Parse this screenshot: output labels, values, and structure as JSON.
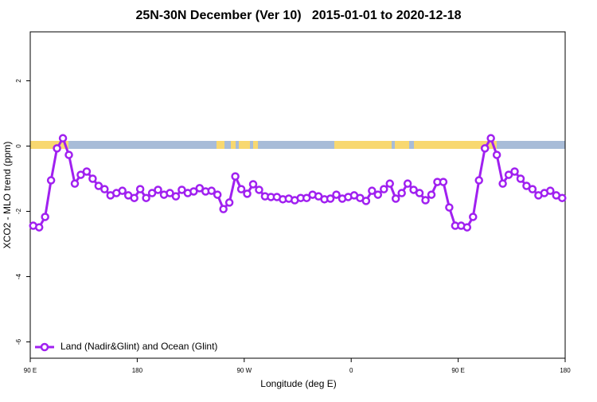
{
  "chart_data": {
    "type": "line",
    "title": "25N-30N December (Ver 10)   2015-01-01 to 2020-12-18",
    "xlabel": "Longitude (deg E)",
    "ylabel": "XCO2 - MLO trend (ppm)",
    "x": [
      92.5,
      97.5,
      102.5,
      107.5,
      112.5,
      117.5,
      122.5,
      127.5,
      132.5,
      137.5,
      142.5,
      147.5,
      152.5,
      157.5,
      162.5,
      167.5,
      172.5,
      177.5,
      182.5,
      187.5,
      192.5,
      197.5,
      202.5,
      207.5,
      212.5,
      217.5,
      222.5,
      227.5,
      232.5,
      237.5,
      242.5,
      247.5,
      252.5,
      257.5,
      262.5,
      267.5,
      272.5,
      277.5,
      282.5,
      287.5,
      292.5,
      297.5,
      302.5,
      307.5,
      312.5,
      317.5,
      322.5,
      327.5,
      332.5,
      337.5,
      342.5,
      347.5,
      352.5,
      357.5,
      362.5,
      367.5,
      372.5,
      377.5,
      382.5,
      387.5,
      392.5,
      397.5,
      402.5,
      407.5,
      412.5,
      417.5,
      422.5,
      427.5,
      432.5,
      437.5,
      442.5,
      447.5,
      452.5,
      457.5,
      462.5,
      467.5,
      472.5,
      477.5,
      482.5,
      487.5,
      492.5,
      497.5,
      502.5,
      507.5,
      512.5,
      517.5,
      522.5,
      527.5,
      532.5,
      537.5
    ],
    "series": [
      {
        "name": "Land (Nadir&Glint) and Ocean (Glint)",
        "color": "#a020f0",
        "values": [
          -2.44,
          -2.49,
          -2.17,
          -1.05,
          -0.07,
          0.24,
          -0.27,
          -1.15,
          -0.88,
          -0.78,
          -1.0,
          -1.22,
          -1.32,
          -1.51,
          -1.44,
          -1.37,
          -1.51,
          -1.59,
          -1.32,
          -1.59,
          -1.44,
          -1.34,
          -1.49,
          -1.44,
          -1.54,
          -1.34,
          -1.44,
          -1.39,
          -1.29,
          -1.39,
          -1.37,
          -1.49,
          -1.93,
          -1.73,
          -0.93,
          -1.32,
          -1.46,
          -1.17,
          -1.34,
          -1.54,
          -1.56,
          -1.56,
          -1.63,
          -1.61,
          -1.66,
          -1.59,
          -1.59,
          -1.49,
          -1.54,
          -1.63,
          -1.61,
          -1.49,
          -1.61,
          -1.56,
          -1.51,
          -1.59,
          -1.68,
          -1.37,
          -1.49,
          -1.32,
          -1.15,
          -1.61,
          -1.44,
          -1.15,
          -1.34,
          -1.44,
          -1.66,
          -1.49,
          -1.1,
          -1.1,
          -1.88,
          -2.44,
          -2.44,
          -2.49,
          -2.17,
          -1.05,
          -0.07,
          0.24,
          -0.27,
          -1.15,
          -0.88,
          -0.78,
          -1.0,
          -1.22,
          -1.32,
          -1.51,
          -1.44,
          -1.37,
          -1.51,
          -1.59
        ]
      }
    ],
    "xlim": [
      90,
      540
    ],
    "xticks": [
      {
        "value": 90,
        "label": "90 E"
      },
      {
        "value": 180,
        "label": "180"
      },
      {
        "value": 270,
        "label": "90 W"
      },
      {
        "value": 360,
        "label": "0"
      },
      {
        "value": 450,
        "label": "90 E"
      },
      {
        "value": 540,
        "label": "180"
      }
    ],
    "ylim": [
      -6.5,
      3.5
    ],
    "yticks": [
      -6,
      -4,
      -2,
      0,
      2
    ],
    "legend": "bottom-left"
  }
}
